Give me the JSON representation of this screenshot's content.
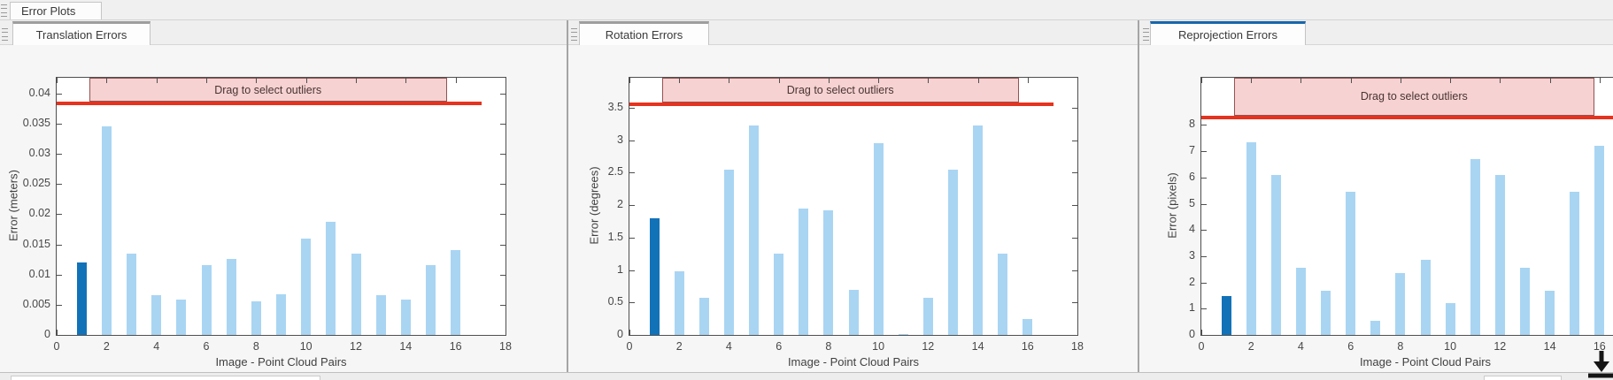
{
  "app": {
    "top_tab": {
      "label": "Error Plots"
    },
    "panels": [
      {
        "tab_label": "Translation Errors",
        "active": false
      },
      {
        "tab_label": "Rotation Errors",
        "active": false
      },
      {
        "tab_label": "Reprojection Errors",
        "active": true
      }
    ],
    "colors": {
      "active_tab_accent": "#1565ac",
      "inactive_tab_accent": "#9d9d9d",
      "bar_light": "#a9d5f3",
      "bar_highlight": "#1272b8",
      "threshold_line": "#e6331f",
      "band_fill": "#f6d2d2",
      "band_border": "#945353"
    },
    "icons": [
      {
        "name": "grip-icon",
        "meaning": "panel drag handle"
      },
      {
        "name": "dock-down-arrow-icon",
        "meaning": "dock/minimize arrow at bottom right"
      }
    ]
  },
  "chart_data": [
    {
      "type": "bar",
      "tab": "Translation Errors",
      "xlabel": "Image - Point Cloud Pairs",
      "ylabel": "Error (meters)",
      "x": [
        1,
        2,
        3,
        4,
        5,
        6,
        7,
        8,
        9,
        10,
        11,
        12,
        13,
        14,
        15,
        16
      ],
      "values": [
        0.012,
        0.0345,
        0.0135,
        0.0066,
        0.0058,
        0.0116,
        0.0126,
        0.0055,
        0.0068,
        0.016,
        0.0188,
        0.0135,
        0.0066,
        0.0058,
        0.0116,
        0.014
      ],
      "highlighted_bar_x": 1,
      "xlim": [
        0,
        18
      ],
      "ylim": [
        0,
        0.0426
      ],
      "xticks": [
        0,
        2,
        4,
        6,
        8,
        10,
        12,
        14,
        16,
        18
      ],
      "yticks": [
        0,
        0.005,
        0.01,
        0.015,
        0.02,
        0.025,
        0.03,
        0.035,
        0.04
      ],
      "ytick_labels": [
        "0",
        "0.005",
        "0.01",
        "0.015",
        "0.02",
        "0.025",
        "0.03",
        "0.035",
        "0.04"
      ],
      "threshold": 0.0383,
      "threshold_span_x": [
        0,
        17.05
      ],
      "band": {
        "label": "Drag to select outliers",
        "from_x": 1.3,
        "to_x": 15.65
      },
      "grid": false,
      "legend": null
    },
    {
      "type": "bar",
      "tab": "Rotation Errors",
      "xlabel": "Image - Point Cloud Pairs",
      "ylabel": "Error (degrees)",
      "x": [
        1,
        2,
        3,
        4,
        5,
        6,
        7,
        8,
        9,
        10,
        11,
        12,
        13,
        14,
        15,
        16
      ],
      "values": [
        1.8,
        0.98,
        0.57,
        2.55,
        3.22,
        1.25,
        1.95,
        1.92,
        0.7,
        2.95,
        0.02,
        0.57,
        2.55,
        3.22,
        1.25,
        0.25
      ],
      "highlighted_bar_x": 1,
      "xlim": [
        0,
        18
      ],
      "ylim": [
        0,
        3.96
      ],
      "xticks": [
        0,
        2,
        4,
        6,
        8,
        10,
        12,
        14,
        16,
        18
      ],
      "yticks": [
        0,
        0.5,
        1,
        1.5,
        2,
        2.5,
        3,
        3.5
      ],
      "ytick_labels": [
        "0",
        "0.5",
        "1",
        "1.5",
        "2",
        "2.5",
        "3",
        "3.5"
      ],
      "threshold": 3.55,
      "threshold_span_x": [
        0,
        17.05
      ],
      "band": {
        "label": "Drag to select outliers",
        "from_x": 1.3,
        "to_x": 15.65
      },
      "grid": false,
      "legend": null
    },
    {
      "type": "bar",
      "tab": "Reprojection Errors",
      "xlabel": "Image - Point Cloud Pairs",
      "ylabel": "Error (pixels)",
      "x": [
        1,
        2,
        3,
        4,
        5,
        6,
        7,
        8,
        9,
        10,
        11,
        12,
        13,
        14,
        15,
        16
      ],
      "values": [
        1.5,
        7.35,
        6.1,
        2.55,
        1.7,
        5.45,
        0.55,
        2.35,
        2.85,
        1.2,
        6.7,
        6.1,
        2.55,
        1.7,
        5.45,
        7.2
      ],
      "highlighted_bar_x": 1,
      "xlim": [
        0,
        18
      ],
      "ylim": [
        0,
        9.8
      ],
      "xticks": [
        0,
        2,
        4,
        6,
        8,
        10,
        12,
        14,
        16
      ],
      "yticks": [
        0,
        1,
        2,
        3,
        4,
        5,
        6,
        7,
        8
      ],
      "ytick_labels": [
        "0",
        "1",
        "2",
        "3",
        "4",
        "5",
        "6",
        "7",
        "8"
      ],
      "threshold": 8.3,
      "threshold_span_x": [
        0,
        17.05
      ],
      "band": {
        "label": "Drag to select outliers",
        "from_x": 1.3,
        "to_x": 15.8
      },
      "grid": false,
      "legend": null
    }
  ]
}
